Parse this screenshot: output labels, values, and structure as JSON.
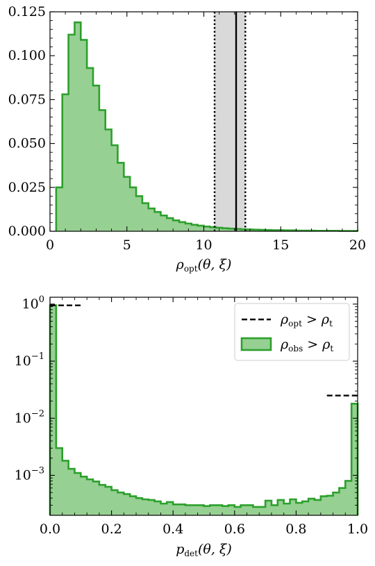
{
  "colors": {
    "hist_fill": "#97d093",
    "hist_edge": "#2ca02c",
    "band_fill": "#d9d9d9",
    "axis": "#000000"
  },
  "chart_data": [
    {
      "type": "area",
      "subtype": "step-histogram",
      "xlabel": "ρopt(θ, ξ)",
      "xlabel_parts": {
        "main": "ρ",
        "sub": "opt",
        "args": "(θ, ξ)"
      },
      "xlim": [
        0,
        20
      ],
      "ylim": [
        0,
        0.125
      ],
      "xticks": [
        0,
        5,
        10,
        15,
        20
      ],
      "xtick_labels": [
        "0",
        "5",
        "10",
        "15",
        "20"
      ],
      "yticks": [
        0,
        0.025,
        0.05,
        0.075,
        0.1,
        0.125
      ],
      "ytick_labels": [
        "0.000",
        "0.025",
        "0.050",
        "0.075",
        "0.100",
        "0.125"
      ],
      "bin_edges": [
        0.4,
        0.8,
        1.2,
        1.6,
        2.0,
        2.4,
        2.8,
        3.2,
        3.6,
        4.0,
        4.4,
        4.8,
        5.2,
        5.6,
        6.0,
        6.4,
        6.8,
        7.2,
        7.6,
        8.0,
        8.4,
        8.8,
        9.2,
        9.6,
        10.0,
        10.4,
        10.8,
        11.2,
        11.6,
        12.0,
        12.4,
        12.8,
        13.2,
        13.6,
        14.0,
        14.4,
        14.8,
        15.2,
        15.6,
        16.0,
        16.4,
        16.8,
        17.2,
        17.6,
        18.0,
        18.4,
        18.8,
        19.2,
        19.6,
        20.0
      ],
      "values": [
        0.025,
        0.078,
        0.112,
        0.119,
        0.109,
        0.093,
        0.083,
        0.069,
        0.058,
        0.049,
        0.039,
        0.031,
        0.025,
        0.02,
        0.016,
        0.013,
        0.011,
        0.009,
        0.0075,
        0.0062,
        0.0052,
        0.0044,
        0.0037,
        0.0032,
        0.0027,
        0.0023,
        0.002,
        0.0017,
        0.0015,
        0.0013,
        0.0011,
        0.001,
        0.0009,
        0.0008,
        0.0007,
        0.0006,
        0.0006,
        0.0005,
        0.0005,
        0.0004,
        0.0004,
        0.0004,
        0.0003,
        0.0003,
        0.0003,
        0.0003,
        0.0002,
        0.0002,
        0.0002
      ],
      "shaded_band": {
        "x0": 10.7,
        "x1": 12.7
      },
      "vline_solid": 12.1,
      "vlines_dotted": [
        10.7,
        12.7
      ],
      "grid": false
    },
    {
      "type": "area",
      "subtype": "step-histogram",
      "xlabel": "pdet(θ, ξ)",
      "xlabel_parts": {
        "main": "p",
        "sub": "det",
        "args": "(θ, ξ)"
      },
      "xlim": [
        0,
        1
      ],
      "ylim_log10": [
        -3.7,
        0.12
      ],
      "yscale": "log",
      "xticks": [
        0,
        0.2,
        0.4,
        0.6,
        0.8,
        1.0
      ],
      "xtick_labels": [
        "0.0",
        "0.2",
        "0.4",
        "0.6",
        "0.8",
        "1.0"
      ],
      "yticks_exp": [
        0,
        -1,
        -2,
        -3
      ],
      "bin_edges": [
        0.0,
        0.02,
        0.04,
        0.06,
        0.08,
        0.1,
        0.12,
        0.14,
        0.16,
        0.18,
        0.2,
        0.22,
        0.24,
        0.26,
        0.28,
        0.3,
        0.32,
        0.34,
        0.36,
        0.38,
        0.4,
        0.42,
        0.44,
        0.46,
        0.48,
        0.5,
        0.52,
        0.54,
        0.56,
        0.58,
        0.6,
        0.62,
        0.64,
        0.66,
        0.68,
        0.7,
        0.72,
        0.74,
        0.76,
        0.78,
        0.8,
        0.82,
        0.84,
        0.86,
        0.88,
        0.9,
        0.92,
        0.94,
        0.96,
        0.98,
        1.0
      ],
      "values": [
        0.95,
        0.003,
        0.0018,
        0.0013,
        0.0011,
        0.00095,
        0.00085,
        0.00078,
        0.00068,
        0.00063,
        0.00055,
        0.0005,
        0.00047,
        0.00043,
        0.0004,
        0.00038,
        0.00037,
        0.00035,
        0.00032,
        0.00034,
        0.00031,
        0.00031,
        0.0003,
        0.0003,
        0.0003,
        0.00029,
        0.0003,
        0.0003,
        0.00029,
        0.0003,
        0.00028,
        0.0003,
        0.0003,
        0.00028,
        0.00028,
        0.00036,
        0.0003,
        0.00037,
        0.00032,
        0.00038,
        0.00033,
        0.00035,
        0.00039,
        0.00037,
        0.00043,
        0.00044,
        0.0005,
        0.0006,
        0.0008,
        0.018
      ],
      "dashed_segments": [
        {
          "x0": 0.0,
          "x1": 0.1,
          "y": 0.95
        },
        {
          "x0": 0.9,
          "x1": 1.0,
          "y": 0.025
        }
      ],
      "legend": {
        "placement": "top-right",
        "entries": [
          {
            "kind": "dashed-line",
            "main": "ρ",
            "sub": "opt",
            "rel": "ρ",
            "rel_sub": "t"
          },
          {
            "kind": "patch",
            "main": "ρ",
            "sub": "obs",
            "rel": "ρ",
            "rel_sub": "t"
          }
        ]
      },
      "grid": false
    }
  ]
}
